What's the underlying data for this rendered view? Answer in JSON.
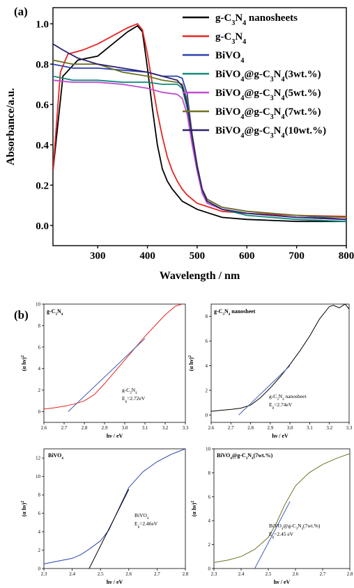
{
  "colors": {
    "gcn_sheet": "#000000",
    "gcn": "#e8231f",
    "bivo4": "#2b3fb0",
    "c3": "#0f8a7c",
    "c5": "#c04ccf",
    "c7": "#6e7223",
    "c10": "#2d206e",
    "fit": "#3c5db5"
  },
  "chart_data": [
    {
      "id": "a",
      "panel_label": "(a)",
      "type": "line",
      "xlabel": "Wavelength / nm",
      "ylabel": "Absorbance/a.u.",
      "xlim": [
        210,
        800
      ],
      "ylim": [
        -0.1,
        1.08
      ],
      "xticks": [
        "300",
        "400",
        "500",
        "600",
        "700",
        "800"
      ],
      "yticks": [
        "0.0",
        "0.2",
        "0.4",
        "0.6",
        "0.8",
        "1.0"
      ],
      "legend_position": "top-right",
      "series": [
        {
          "name": "g-C3N4 nanosheets",
          "legend": [
            "g-C",
            "3",
            "N",
            "4",
            " nanosheets"
          ],
          "color_key": "gcn_sheet",
          "x": [
            210,
            230,
            260,
            300,
            330,
            360,
            380,
            390,
            400,
            410,
            420,
            430,
            440,
            450,
            470,
            500,
            550,
            600,
            700,
            800
          ],
          "y": [
            0.27,
            0.74,
            0.82,
            0.84,
            0.9,
            0.96,
            0.99,
            0.96,
            0.78,
            0.58,
            0.4,
            0.28,
            0.22,
            0.18,
            0.12,
            0.08,
            0.04,
            0.03,
            0.02,
            0.02
          ]
        },
        {
          "name": "g-C3N4",
          "legend": [
            "g-C",
            "3",
            "N",
            "4"
          ],
          "color_key": "gcn",
          "x": [
            210,
            225,
            240,
            270,
            300,
            330,
            360,
            380,
            390,
            400,
            410,
            420,
            430,
            440,
            450,
            460,
            470,
            480,
            500,
            550,
            600,
            700,
            800
          ],
          "y": [
            0.27,
            0.76,
            0.85,
            0.87,
            0.9,
            0.94,
            0.98,
            1.0,
            0.97,
            0.85,
            0.7,
            0.56,
            0.44,
            0.34,
            0.27,
            0.22,
            0.18,
            0.15,
            0.11,
            0.07,
            0.06,
            0.05,
            0.045
          ]
        },
        {
          "name": "BiVO4",
          "legend": [
            "BiVO",
            "4"
          ],
          "color_key": "bivo4",
          "x": [
            210,
            250,
            300,
            350,
            400,
            430,
            460,
            470,
            480,
            490,
            500,
            510,
            520,
            550,
            600,
            650,
            700,
            750,
            800
          ],
          "y": [
            0.8,
            0.78,
            0.78,
            0.77,
            0.76,
            0.74,
            0.74,
            0.73,
            0.65,
            0.45,
            0.3,
            0.18,
            0.13,
            0.09,
            0.07,
            0.06,
            0.05,
            0.04,
            0.03
          ]
        },
        {
          "name": "BiVO4@g-C3N4(3wt.%)",
          "legend": [
            "BiVO",
            "4",
            "@g-C",
            "3",
            "N",
            "4",
            "(3wt.%)"
          ],
          "color_key": "c3",
          "x": [
            210,
            250,
            300,
            350,
            400,
            430,
            460,
            470,
            480,
            490,
            500,
            510,
            520,
            550,
            600,
            700,
            800
          ],
          "y": [
            0.74,
            0.72,
            0.72,
            0.71,
            0.71,
            0.7,
            0.7,
            0.68,
            0.58,
            0.42,
            0.28,
            0.17,
            0.12,
            0.08,
            0.05,
            0.03,
            0.02
          ]
        },
        {
          "name": "BiVO4@g-C3N4(5wt.%)",
          "legend": [
            "BiVO",
            "4",
            "@g-C",
            "3",
            "N",
            "4",
            "(5wt.%)"
          ],
          "color_key": "c5",
          "x": [
            210,
            250,
            300,
            350,
            400,
            430,
            460,
            470,
            480,
            490,
            500,
            510,
            520,
            550,
            600,
            700,
            800
          ],
          "y": [
            0.72,
            0.71,
            0.71,
            0.7,
            0.68,
            0.66,
            0.65,
            0.63,
            0.55,
            0.4,
            0.27,
            0.16,
            0.11,
            0.08,
            0.06,
            0.04,
            0.03
          ]
        },
        {
          "name": "BiVO4@g-C3N4(7wt.%)",
          "legend": [
            "BiVO",
            "4",
            "@g-C",
            "3",
            "N",
            "4",
            "(7wt.%)"
          ],
          "color_key": "c7",
          "x": [
            210,
            250,
            300,
            350,
            400,
            430,
            460,
            470,
            480,
            490,
            500,
            510,
            520,
            550,
            600,
            700,
            800
          ],
          "y": [
            0.82,
            0.8,
            0.8,
            0.76,
            0.74,
            0.72,
            0.71,
            0.7,
            0.62,
            0.45,
            0.3,
            0.18,
            0.13,
            0.09,
            0.07,
            0.05,
            0.04
          ]
        },
        {
          "name": "BiVO4@g-C3N4(10wt.%)",
          "legend": [
            "BiVO",
            "4",
            "@g-C",
            "3",
            "N",
            "4",
            "(10wt.%)"
          ],
          "color_key": "c10",
          "x": [
            210,
            230,
            260,
            300,
            350,
            400,
            430,
            460,
            470,
            480,
            490,
            500,
            510,
            520,
            550,
            600,
            700,
            800
          ],
          "y": [
            0.9,
            0.87,
            0.83,
            0.8,
            0.78,
            0.76,
            0.74,
            0.72,
            0.69,
            0.6,
            0.44,
            0.29,
            0.18,
            0.12,
            0.08,
            0.06,
            0.04,
            0.03
          ]
        }
      ]
    },
    {
      "id": "b1",
      "panel_label": "(b)",
      "type": "line",
      "corner_label": [
        "g-C",
        "3",
        "N",
        "4"
      ],
      "annotation": {
        "line1": [
          "g-C",
          "3",
          "N",
          "4"
        ],
        "line2": [
          "E",
          "g",
          "=2.72eV"
        ]
      },
      "xlabel": "hν / eV",
      "ylabel": "(α hν)",
      "ylabel_sup": "2",
      "xlim": [
        2.6,
        3.3
      ],
      "ylim": [
        -1,
        10
      ],
      "xticks": [
        "2.6",
        "2.7",
        "2.8",
        "2.9",
        "3.0",
        "3.1",
        "3.2",
        "3.3"
      ],
      "yticks": [
        "0",
        "2",
        "4",
        "6",
        "8",
        "10"
      ],
      "curve_color_key": "gcn",
      "curve": {
        "x": [
          2.6,
          2.65,
          2.7,
          2.75,
          2.8,
          2.85,
          2.9,
          2.95,
          3.0,
          3.05,
          3.1,
          3.15,
          3.2,
          3.25,
          3.3
        ],
        "y": [
          0.25,
          0.35,
          0.5,
          0.7,
          1.0,
          1.6,
          2.6,
          3.7,
          4.8,
          5.9,
          7.0,
          8.0,
          9.0,
          9.8,
          10.1
        ]
      },
      "fit": {
        "x": [
          2.72,
          3.1
        ],
        "y": [
          0,
          6.8
        ]
      },
      "fit_color_key": "fit"
    },
    {
      "id": "b2",
      "type": "line",
      "corner_label": [
        "g-C",
        "3",
        "N",
        "4",
        " nanosheet"
      ],
      "annotation": {
        "line1": [
          "g-C",
          "3",
          "N",
          "4",
          " nanosheet"
        ],
        "line2": [
          "E",
          "g",
          "=2.74eV"
        ]
      },
      "xlabel": "hν / eV",
      "ylabel": "(α hν)",
      "ylabel_sup": "2",
      "xlim": [
        2.6,
        3.3
      ],
      "ylim": [
        -0.6,
        9
      ],
      "xticks": [
        "2.6",
        "2.7",
        "2.8",
        "2.9",
        "3.0",
        "3.1",
        "3.2",
        "3.3"
      ],
      "yticks": [
        "0",
        "2",
        "4",
        "6",
        "8"
      ],
      "curve_color_key": "gcn_sheet",
      "curve": {
        "x": [
          2.6,
          2.65,
          2.7,
          2.75,
          2.8,
          2.85,
          2.9,
          2.95,
          3.0,
          3.05,
          3.1,
          3.15,
          3.2,
          3.22,
          3.25,
          3.28,
          3.3
        ],
        "y": [
          0.3,
          0.38,
          0.45,
          0.55,
          0.8,
          1.4,
          2.2,
          3.1,
          4.1,
          5.2,
          6.4,
          7.8,
          8.8,
          8.9,
          8.7,
          9.0,
          8.6
        ]
      },
      "fit": {
        "x": [
          2.74,
          3.0
        ],
        "y": [
          0,
          4.0
        ]
      },
      "fit_color_key": "fit"
    },
    {
      "id": "b3",
      "type": "line",
      "corner_label": [
        "BiVO",
        "4"
      ],
      "annotation": {
        "line1": [
          "BiVO",
          "4"
        ],
        "line2": [
          "E",
          "g",
          "=2.46eV"
        ]
      },
      "xlabel": "hν / eV",
      "ylabel": "(α hν)",
      "ylabel_sup": "2",
      "xlim": [
        2.3,
        2.8
      ],
      "ylim": [
        0,
        13
      ],
      "xticks": [
        "2.3",
        "2.4",
        "2.5",
        "2.6",
        "2.7",
        "2.8"
      ],
      "yticks": [
        "0",
        "2",
        "4",
        "6",
        "8",
        "10",
        "12"
      ],
      "curve_color_key": "bivo4",
      "curve": {
        "x": [
          2.3,
          2.35,
          2.4,
          2.43,
          2.46,
          2.5,
          2.53,
          2.56,
          2.6,
          2.65,
          2.7,
          2.75,
          2.8
        ],
        "y": [
          0.5,
          0.8,
          1.1,
          1.5,
          2.1,
          3.0,
          4.2,
          6.2,
          8.8,
          10.5,
          11.6,
          12.4,
          13.0
        ]
      },
      "fit": {
        "x": [
          2.46,
          2.6
        ],
        "y": [
          0,
          8.6
        ]
      },
      "fit_color_key": "gcn_sheet"
    },
    {
      "id": "b4",
      "type": "line",
      "corner_label": [
        "BiVO",
        "4",
        "@g-C",
        "3",
        "N",
        "4",
        "(7wt.%)"
      ],
      "annotation": {
        "line1": [
          "BiVO",
          "4",
          "@g-C",
          "3",
          "N",
          "4",
          "(7wt.%)"
        ],
        "line2": [
          "E",
          "g",
          "=2.45 eV"
        ]
      },
      "xlabel": "hν / eV",
      "ylabel": "(α hν)",
      "ylabel_sup": "2",
      "xlim": [
        2.3,
        2.8
      ],
      "ylim": [
        0,
        10
      ],
      "xticks": [
        "2.3",
        "2.4",
        "2.5",
        "2.6",
        "2.7",
        "2.8"
      ],
      "yticks": [
        "0",
        "2",
        "4",
        "6",
        "8",
        "10"
      ],
      "curve_color_key": "c7",
      "curve": {
        "x": [
          2.3,
          2.35,
          2.4,
          2.45,
          2.5,
          2.53,
          2.56,
          2.6,
          2.65,
          2.7,
          2.75,
          2.8
        ],
        "y": [
          0.5,
          0.7,
          1.0,
          1.6,
          2.6,
          3.8,
          5.3,
          6.9,
          8.0,
          8.7,
          9.2,
          9.6
        ]
      },
      "fit": {
        "x": [
          2.45,
          2.58
        ],
        "y": [
          0,
          5.6
        ]
      },
      "fit_color_key": "fit"
    }
  ]
}
